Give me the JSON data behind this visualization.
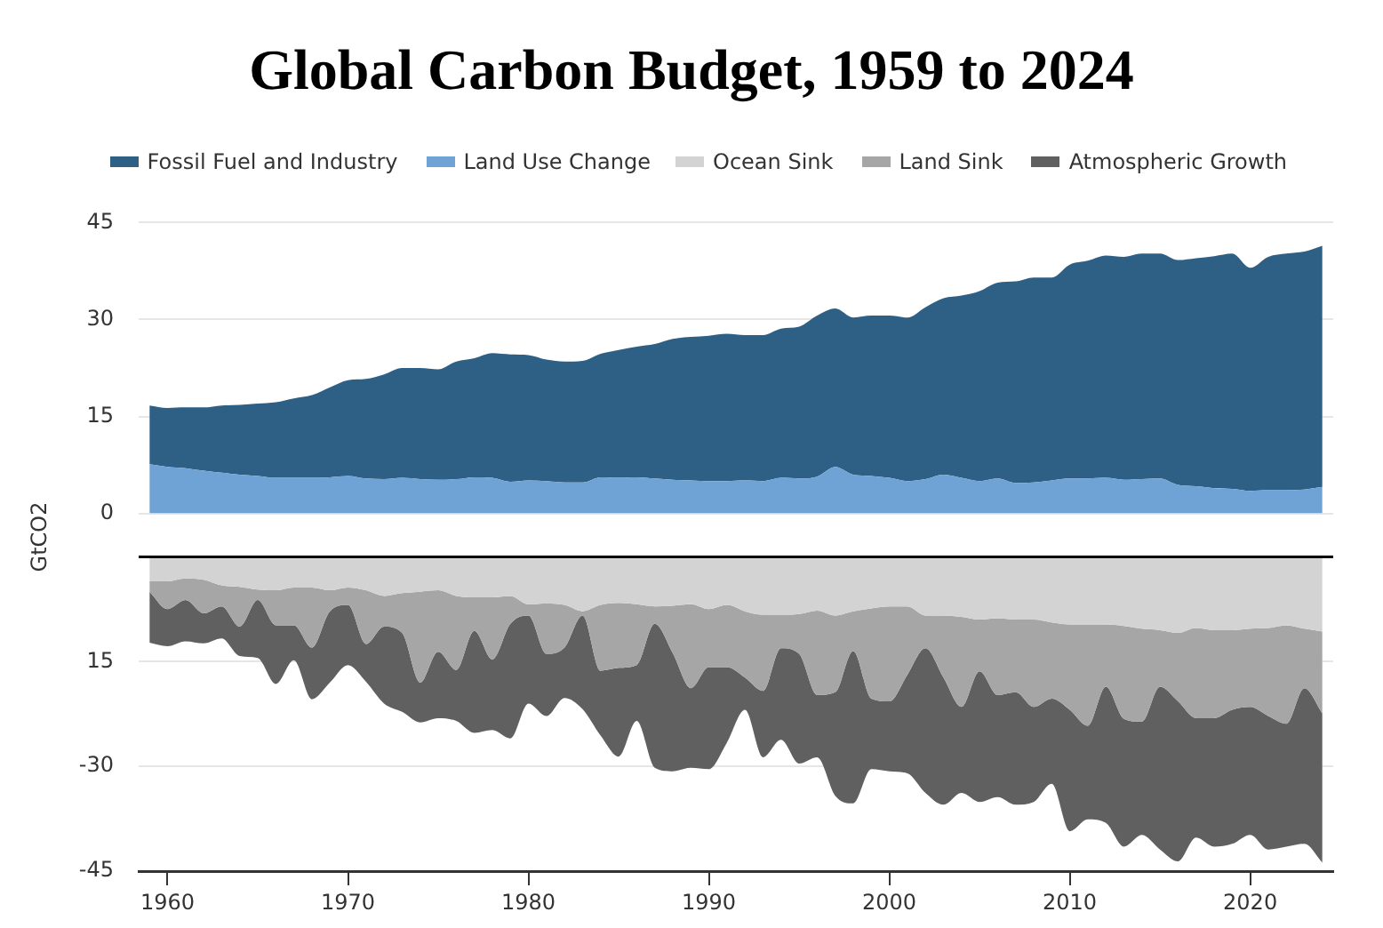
{
  "chart_data": [
    {
      "type": "area",
      "title": "Global Carbon Budget, 1959 to 2024",
      "ylabel": "GtCO2",
      "stacked": true,
      "grid": "y",
      "legend": "top",
      "marker": "none",
      "tick_labels": "y",
      "x": [
        1959,
        1960,
        1961,
        1962,
        1963,
        1964,
        1965,
        1966,
        1967,
        1968,
        1969,
        1970,
        1971,
        1972,
        1973,
        1974,
        1975,
        1976,
        1977,
        1978,
        1979,
        1980,
        1981,
        1982,
        1983,
        1984,
        1985,
        1986,
        1987,
        1988,
        1989,
        1990,
        1991,
        1992,
        1993,
        1994,
        1995,
        1996,
        1997,
        1998,
        1999,
        2000,
        2001,
        2002,
        2003,
        2004,
        2005,
        2006,
        2007,
        2008,
        2009,
        2010,
        2011,
        2012,
        2013,
        2014,
        2015,
        2016,
        2017,
        2018,
        2019,
        2020,
        2021,
        2022,
        2023,
        2024
      ],
      "xlim": [
        1958.4,
        2024.6
      ],
      "ylim": [
        0,
        45
      ],
      "yticks": [
        45,
        30,
        15,
        0
      ],
      "series": [
        {
          "name": "Land Use Change",
          "color": "#6fa3d6",
          "values": [
            7.6,
            7.2,
            7.0,
            6.6,
            6.3,
            6.0,
            5.8,
            5.5,
            5.5,
            5.5,
            5.6,
            5.8,
            5.4,
            5.3,
            5.5,
            5.3,
            5.2,
            5.3,
            5.6,
            5.5,
            4.9,
            5.1,
            5.0,
            4.8,
            4.8,
            5.6,
            5.5,
            5.6,
            5.4,
            5.2,
            5.1,
            5.0,
            5.0,
            5.1,
            5.0,
            5.5,
            5.4,
            5.7,
            7.2,
            6.0,
            5.8,
            5.5,
            5.0,
            5.3,
            6.0,
            5.5,
            5.0,
            5.4,
            4.7,
            4.8,
            5.1,
            5.4,
            5.4,
            5.5,
            5.2,
            5.3,
            5.4,
            4.4,
            4.2,
            3.9,
            3.8,
            3.5,
            3.6,
            3.6,
            3.7,
            4.1
          ]
        },
        {
          "name": "Fossil Fuel and Industry",
          "color": "#2e5f85",
          "values": [
            9.1,
            9.1,
            9.4,
            9.8,
            10.4,
            10.8,
            11.2,
            11.7,
            12.3,
            12.8,
            13.9,
            14.8,
            15.4,
            16.2,
            17.0,
            17.2,
            17.1,
            18.2,
            18.4,
            19.3,
            19.7,
            19.4,
            18.8,
            18.7,
            18.8,
            19.1,
            19.8,
            20.2,
            20.8,
            21.8,
            22.2,
            22.5,
            22.8,
            22.5,
            22.6,
            23.1,
            23.5,
            24.9,
            24.5,
            24.3,
            24.8,
            25.1,
            25.3,
            26.6,
            27.3,
            28.2,
            29.4,
            30.3,
            31.2,
            31.7,
            31.4,
            33.1,
            33.7,
            34.4,
            34.5,
            34.9,
            34.8,
            34.8,
            35.3,
            35.9,
            36.4,
            34.5,
            36.1,
            36.6,
            36.8,
            37.3
          ]
        }
      ]
    },
    {
      "type": "area",
      "stacked": true,
      "grid": "y",
      "legend": "top",
      "marker": "none",
      "x": [
        1959,
        1960,
        1961,
        1962,
        1963,
        1964,
        1965,
        1966,
        1967,
        1968,
        1969,
        1970,
        1971,
        1972,
        1973,
        1974,
        1975,
        1976,
        1977,
        1978,
        1979,
        1980,
        1981,
        1982,
        1983,
        1984,
        1985,
        1986,
        1987,
        1988,
        1989,
        1990,
        1991,
        1992,
        1993,
        1994,
        1995,
        1996,
        1997,
        1998,
        1999,
        2000,
        2001,
        2002,
        2003,
        2004,
        2005,
        2006,
        2007,
        2008,
        2009,
        2010,
        2011,
        2012,
        2013,
        2014,
        2015,
        2016,
        2017,
        2018,
        2019,
        2020,
        2021,
        2022,
        2023,
        2024
      ],
      "xlim": [
        1958.4,
        2024.6
      ],
      "xticks": [
        1960,
        1970,
        1980,
        1990,
        2000,
        2010,
        2020
      ],
      "ylim": [
        -45,
        0
      ],
      "yticks": [
        {
          "value": -15,
          "label": "15"
        },
        -30,
        -45
      ],
      "ref_lines": [
        {
          "axis": "y",
          "value": 0,
          "color": "#000000"
        }
      ],
      "series": [
        {
          "name": "Ocean Sink",
          "color": "#d3d3d3",
          "values": [
            -3.5,
            -3.5,
            -3.1,
            -3.3,
            -4.1,
            -4.3,
            -4.7,
            -4.8,
            -4.4,
            -4.4,
            -4.8,
            -4.4,
            -4.8,
            -5.6,
            -5.2,
            -5.0,
            -4.8,
            -5.6,
            -5.8,
            -5.8,
            -5.6,
            -6.8,
            -6.7,
            -6.9,
            -7.8,
            -6.9,
            -6.6,
            -6.8,
            -7.1,
            -7.0,
            -6.8,
            -7.5,
            -6.9,
            -7.8,
            -8.3,
            -8.3,
            -8.2,
            -7.7,
            -8.4,
            -7.8,
            -7.4,
            -7.1,
            -7.1,
            -8.4,
            -8.4,
            -8.6,
            -9.0,
            -8.8,
            -9.0,
            -9.0,
            -9.4,
            -9.7,
            -9.7,
            -9.7,
            -9.9,
            -10.3,
            -10.5,
            -10.9,
            -10.2,
            -10.5,
            -10.5,
            -10.3,
            -10.2,
            -9.8,
            -10.3,
            -10.7
          ]
        },
        {
          "name": "Land Sink",
          "color": "#a6a6a6",
          "values": [
            -1.5,
            -4.0,
            -3.1,
            -4.8,
            -3.0,
            -5.7,
            -1.5,
            -5.0,
            -5.4,
            -8.6,
            -3.0,
            -2.5,
            -7.7,
            -4.4,
            -5.7,
            -13.0,
            -8.8,
            -10.6,
            -4.8,
            -8.9,
            -4.0,
            -1.6,
            -7.2,
            -6.1,
            -0.6,
            -9.4,
            -9.3,
            -8.7,
            -2.5,
            -6.8,
            -12.0,
            -8.3,
            -8.9,
            -9.5,
            -10.9,
            -4.8,
            -5.7,
            -12.1,
            -11.0,
            -5.7,
            -12.9,
            -13.6,
            -9.8,
            -4.7,
            -8.9,
            -12.9,
            -7.4,
            -11.0,
            -10.4,
            -12.5,
            -10.9,
            -12.2,
            -14.5,
            -8.9,
            -13.3,
            -13.3,
            -8.1,
            -9.8,
            -12.9,
            -12.6,
            -11.4,
            -11.2,
            -12.6,
            -14.1,
            -8.5,
            -11.7
          ]
        },
        {
          "name": "Atmospheric Growth",
          "color": "#606060",
          "values": [
            -7.3,
            -5.3,
            -5.9,
            -4.3,
            -4.6,
            -4.2,
            -8.3,
            -8.4,
            -5.0,
            -7.4,
            -10.2,
            -8.6,
            -5.4,
            -11.0,
            -11.3,
            -5.7,
            -9.5,
            -7.3,
            -14.6,
            -10.1,
            -16.4,
            -12.6,
            -8.9,
            -7.2,
            -13.4,
            -9.3,
            -12.7,
            -8.0,
            -20.6,
            -16.9,
            -11.4,
            -14.6,
            -10.8,
            -4.6,
            -9.5,
            -13.1,
            -15.7,
            -8.9,
            -14.8,
            -21.8,
            -10.1,
            -10.0,
            -14.1,
            -20.7,
            -18.2,
            -12.3,
            -18.7,
            -14.6,
            -16.1,
            -13.6,
            -12.2,
            -17.4,
            -13.4,
            -19.5,
            -18.3,
            -16.2,
            -23.3,
            -22.9,
            -17.1,
            -18.4,
            -19.2,
            -18.3,
            -19.1,
            -17.6,
            -22.3,
            -21.4
          ]
        }
      ]
    }
  ]
}
